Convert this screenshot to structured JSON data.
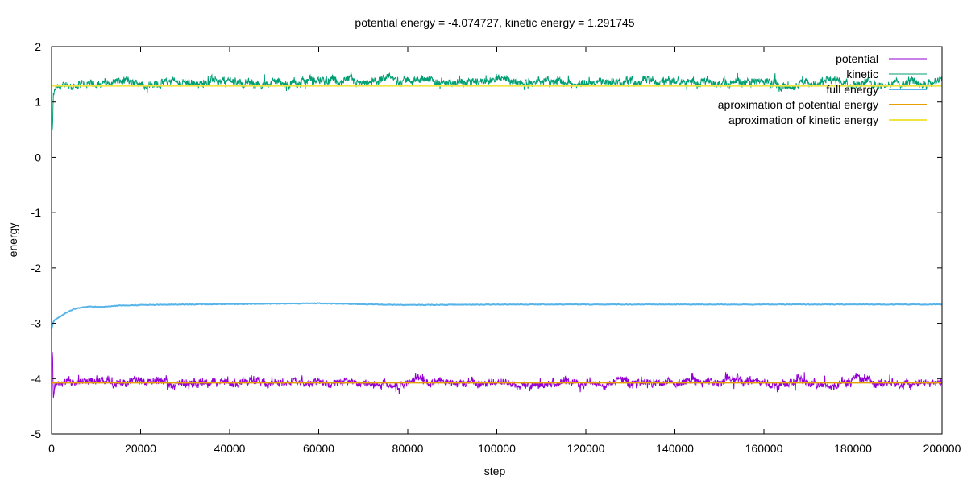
{
  "chart_data": {
    "type": "line",
    "title": "potential energy = -4.074727, kinetic energy = 1.291745",
    "xlabel": "step",
    "ylabel": "energy",
    "xlim": [
      0,
      200000
    ],
    "ylim": [
      -5,
      2
    ],
    "xticks": [
      0,
      20000,
      40000,
      60000,
      80000,
      100000,
      120000,
      140000,
      160000,
      180000,
      200000
    ],
    "xtick_labels": [
      "0",
      "20000",
      "40000",
      "60000",
      "80000",
      "100000",
      "120000",
      "140000",
      "160000",
      "180000",
      "200000"
    ],
    "yticks": [
      -5,
      -4,
      -3,
      -2,
      -1,
      0,
      1,
      2
    ],
    "ytick_labels": [
      "-5",
      "-4",
      "-3",
      "-2",
      "-1",
      "0",
      "1",
      "2"
    ],
    "grid": false,
    "legend_position": "top-right",
    "series": [
      {
        "name": "potential",
        "color": "#9400d3",
        "style": "noisy",
        "x": [
          0,
          200,
          400,
          600,
          800,
          1500,
          3000,
          5000,
          8000,
          15000,
          30000,
          55000,
          80000,
          120000,
          160000,
          200000
        ],
        "y": [
          -3.75,
          -3.45,
          -4.35,
          -4.2,
          -4.15,
          -4.12,
          -4.1,
          -4.08,
          -4.07,
          -4.07,
          -4.07,
          -4.06,
          -4.08,
          -4.07,
          -4.07,
          -4.07
        ],
        "noise": 0.07
      },
      {
        "name": "kinetic",
        "color": "#009e73",
        "style": "noisy",
        "x": [
          0,
          200,
          400,
          600,
          800,
          1500,
          3000,
          5000,
          8000,
          15000,
          30000,
          55000,
          80000,
          120000,
          160000,
          200000
        ],
        "y": [
          0.5,
          0.45,
          1.1,
          1.15,
          1.2,
          1.25,
          1.28,
          1.3,
          1.33,
          1.36,
          1.37,
          1.37,
          1.38,
          1.36,
          1.36,
          1.36
        ],
        "noise": 0.07
      },
      {
        "name": "full energy",
        "color": "#56b4e9",
        "style": "smooth",
        "x": [
          0,
          500,
          1500,
          3000,
          5000,
          8000,
          12000,
          15000,
          20000,
          30000,
          45000,
          60000,
          80000,
          100000,
          130000,
          160000,
          200000
        ],
        "y": [
          -3.1,
          -2.95,
          -2.9,
          -2.82,
          -2.74,
          -2.7,
          -2.7,
          -2.68,
          -2.67,
          -2.66,
          -2.65,
          -2.64,
          -2.67,
          -2.66,
          -2.66,
          -2.66,
          -2.66
        ]
      },
      {
        "name": "aproximation of potential energy",
        "color": "#e69f00",
        "style": "flat",
        "x": [
          0,
          200000
        ],
        "y": [
          -4.074727,
          -4.074727
        ]
      },
      {
        "name": "aproximation of kinetic energy",
        "color": "#f0e442",
        "style": "flat",
        "x": [
          0,
          200000
        ],
        "y": [
          1.291745,
          1.291745
        ]
      }
    ]
  }
}
